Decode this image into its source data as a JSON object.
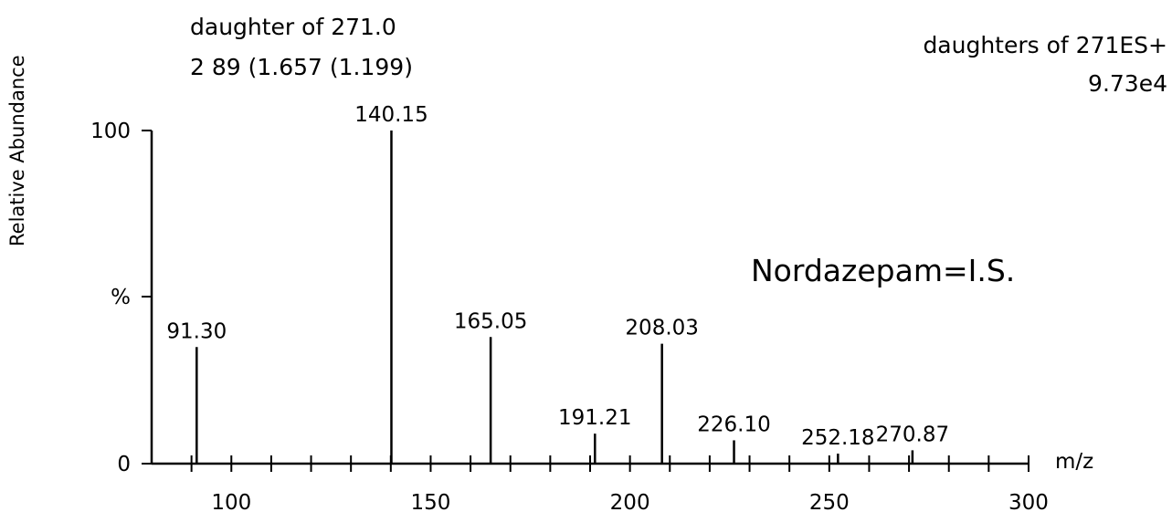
{
  "chart_data": {
    "type": "bar",
    "title_lines": [
      "daughter of 271.0",
      "2 89 (1.657 (1.199)"
    ],
    "info_lines": [
      "daughters of 271ES+",
      "9.73e4"
    ],
    "annotation": "Nordazepam=I.S.",
    "xlabel": "m/z",
    "ylabel": "Relative Abundance",
    "y_tick_labels": [
      "100",
      "%",
      "0"
    ],
    "xlim": [
      80,
      300
    ],
    "ylim": [
      0,
      100
    ],
    "x_ticks": [
      100,
      150,
      200,
      250,
      300
    ],
    "x_minor_step": 10,
    "grid": false,
    "series": [
      {
        "peaks": [
          {
            "mz": 91.3,
            "label": "91.30",
            "abundance": 35
          },
          {
            "mz": 140.15,
            "label": "140.15",
            "abundance": 100
          },
          {
            "mz": 165.05,
            "label": "165.05",
            "abundance": 38
          },
          {
            "mz": 191.21,
            "label": "191.21",
            "abundance": 9
          },
          {
            "mz": 208.03,
            "label": "208.03",
            "abundance": 36
          },
          {
            "mz": 226.1,
            "label": "226.10",
            "abundance": 7
          },
          {
            "mz": 252.18,
            "label": "252.18",
            "abundance": 3
          },
          {
            "mz": 270.87,
            "label": "270.87",
            "abundance": 4
          }
        ]
      }
    ]
  }
}
